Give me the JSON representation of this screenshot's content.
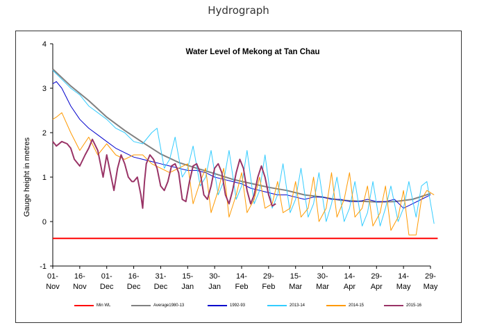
{
  "page": {
    "title": "Hydrograph"
  },
  "chart_data": {
    "type": "line",
    "title": "Water Level of Mekong at Tan Chau",
    "xlabel": "",
    "ylabel": "Gauge height in metres",
    "ylim": [
      -1,
      4
    ],
    "yticks": [
      "-1",
      "0",
      "1",
      "2",
      "3",
      "4"
    ],
    "xlim": [
      0,
      210
    ],
    "xticks": [
      {
        "day": 0,
        "line1": "01-",
        "line2": "Nov"
      },
      {
        "day": 15,
        "line1": "16-",
        "line2": "Nov"
      },
      {
        "day": 30,
        "line1": "01-",
        "line2": "Dec"
      },
      {
        "day": 45,
        "line1": "16-",
        "line2": "Dec"
      },
      {
        "day": 60,
        "line1": "31-",
        "line2": "Dec"
      },
      {
        "day": 75,
        "line1": "15-",
        "line2": "Jan"
      },
      {
        "day": 90,
        "line1": "30-",
        "line2": "Jan"
      },
      {
        "day": 105,
        "line1": "14-",
        "line2": "Feb"
      },
      {
        "day": 120,
        "line1": "29-",
        "line2": "Feb"
      },
      {
        "day": 135,
        "line1": "15-",
        "line2": "Mar"
      },
      {
        "day": 150,
        "line1": "30-",
        "line2": "Mar"
      },
      {
        "day": 165,
        "line1": "14-",
        "line2": "Apr"
      },
      {
        "day": 180,
        "line1": "29-",
        "line2": "Apr"
      },
      {
        "day": 195,
        "line1": "14-",
        "line2": "May"
      },
      {
        "day": 210,
        "line1": "29-",
        "line2": "May"
      }
    ],
    "grid": false,
    "legend_position": "bottom",
    "series": [
      {
        "name": "Min WL",
        "color": "#ff0000",
        "width": 2,
        "x": [
          0,
          214
        ],
        "y": [
          -0.38,
          -0.38
        ]
      },
      {
        "name": "Average1980-13",
        "color": "#808080",
        "width": 2,
        "x": [
          0,
          10,
          20,
          30,
          40,
          50,
          60,
          70,
          80,
          90,
          100,
          110,
          120,
          130,
          140,
          150,
          160,
          170,
          180,
          190,
          200,
          210
        ],
        "y": [
          3.43,
          3.05,
          2.72,
          2.35,
          2.05,
          1.78,
          1.52,
          1.33,
          1.2,
          1.08,
          0.95,
          0.86,
          0.77,
          0.7,
          0.6,
          0.55,
          0.48,
          0.46,
          0.44,
          0.45,
          0.5,
          0.63
        ]
      },
      {
        "name": "1992-93",
        "color": "#0000cc",
        "width": 1,
        "x": [
          0,
          2,
          5,
          10,
          15,
          20,
          25,
          30,
          35,
          40,
          45,
          50,
          55,
          60,
          65,
          70,
          75,
          80,
          85,
          90,
          95,
          100,
          105,
          110,
          115,
          120,
          125,
          130,
          135,
          140,
          145,
          150,
          155,
          160,
          165,
          170,
          175,
          180,
          185,
          190,
          195,
          200,
          205,
          210
        ],
        "y": [
          3.1,
          3.15,
          3.0,
          2.6,
          2.3,
          2.1,
          1.95,
          1.8,
          1.65,
          1.55,
          1.45,
          1.4,
          1.35,
          1.3,
          1.25,
          1.2,
          1.15,
          1.15,
          1.1,
          1.0,
          0.95,
          0.9,
          0.85,
          0.75,
          0.7,
          0.65,
          0.6,
          0.6,
          0.55,
          0.5,
          0.55,
          0.55,
          0.5,
          0.5,
          0.45,
          0.45,
          0.5,
          0.45,
          0.45,
          0.5,
          0.3,
          0.4,
          0.5,
          0.6
        ]
      },
      {
        "name": "2013-14",
        "color": "#33ccff",
        "width": 1,
        "x": [
          0,
          5,
          10,
          15,
          20,
          25,
          30,
          35,
          40,
          45,
          50,
          55,
          58,
          62,
          65,
          68,
          72,
          75,
          78,
          82,
          85,
          88,
          92,
          95,
          98,
          102,
          105,
          108,
          112,
          115,
          118,
          122,
          125,
          128,
          132,
          135,
          138,
          142,
          145,
          148,
          152,
          155,
          158,
          162,
          165,
          168,
          172,
          175,
          178,
          182,
          185,
          188,
          192,
          195,
          198,
          202,
          205,
          208,
          212
        ],
        "y": [
          3.4,
          3.2,
          3.0,
          2.85,
          2.6,
          2.45,
          2.3,
          2.1,
          2.0,
          1.8,
          1.75,
          2.0,
          2.1,
          1.2,
          1.4,
          1.9,
          1.0,
          1.2,
          1.7,
          0.8,
          1.0,
          1.6,
          0.6,
          0.9,
          1.6,
          0.5,
          0.8,
          1.6,
          0.4,
          0.7,
          1.5,
          0.3,
          0.6,
          1.3,
          0.2,
          0.5,
          1.2,
          0.1,
          0.4,
          1.1,
          0.0,
          0.4,
          1.0,
          0.0,
          0.3,
          0.9,
          -0.1,
          0.2,
          0.9,
          -0.1,
          0.3,
          0.8,
          0.0,
          0.3,
          0.9,
          0.1,
          0.8,
          0.9,
          -0.05
        ]
      },
      {
        "name": "2014-15",
        "color": "#ff9900",
        "width": 1,
        "x": [
          0,
          2,
          5,
          10,
          15,
          20,
          25,
          30,
          35,
          40,
          45,
          50,
          55,
          60,
          65,
          70,
          75,
          78,
          82,
          85,
          88,
          92,
          95,
          98,
          102,
          105,
          108,
          112,
          115,
          118,
          122,
          125,
          128,
          132,
          135,
          138,
          142,
          145,
          148,
          152,
          155,
          158,
          162,
          165,
          168,
          172,
          175,
          178,
          182,
          185,
          188,
          192,
          195,
          198,
          202,
          205,
          208,
          212
        ],
        "y": [
          2.3,
          2.35,
          2.45,
          2.0,
          1.6,
          1.9,
          1.5,
          1.75,
          1.5,
          1.4,
          1.5,
          1.5,
          1.3,
          1.2,
          1.1,
          1.2,
          1.3,
          0.4,
          0.9,
          1.2,
          0.2,
          0.7,
          1.2,
          0.1,
          0.6,
          1.1,
          0.2,
          0.5,
          1.0,
          0.3,
          0.4,
          0.9,
          0.2,
          0.3,
          0.9,
          0.1,
          0.3,
          1.0,
          0.0,
          0.3,
          1.1,
          0.1,
          0.5,
          1.1,
          0.1,
          0.3,
          0.8,
          -0.1,
          0.2,
          0.8,
          -0.2,
          0.1,
          0.7,
          -0.3,
          -0.3,
          0.5,
          0.7,
          0.6
        ]
      },
      {
        "name": "2015-16",
        "color": "#993366",
        "width": 2,
        "x": [
          0,
          2,
          5,
          8,
          10,
          12,
          15,
          18,
          20,
          22,
          25,
          28,
          30,
          32,
          34,
          36,
          38,
          40,
          42,
          44,
          45,
          47,
          49,
          50,
          51,
          52,
          54,
          56,
          58,
          60,
          62,
          64,
          66,
          68,
          70,
          72,
          74,
          76,
          78,
          80,
          82,
          84,
          86,
          88,
          90,
          92,
          94,
          96,
          98,
          100,
          102,
          104,
          106,
          108,
          110,
          112,
          114,
          116,
          118,
          120,
          122,
          124
        ],
        "y": [
          1.8,
          1.7,
          1.8,
          1.75,
          1.65,
          1.4,
          1.25,
          1.5,
          1.65,
          1.85,
          1.6,
          1.0,
          1.5,
          1.1,
          0.7,
          1.2,
          1.5,
          1.3,
          1.0,
          0.9,
          0.9,
          1.0,
          0.6,
          0.3,
          0.9,
          1.3,
          1.5,
          1.4,
          1.2,
          0.8,
          0.7,
          0.9,
          1.25,
          1.3,
          1.1,
          0.5,
          0.45,
          0.9,
          1.25,
          1.3,
          1.1,
          0.6,
          0.5,
          0.8,
          1.2,
          1.3,
          1.1,
          0.6,
          0.4,
          0.7,
          1.1,
          1.4,
          1.2,
          0.7,
          0.4,
          0.6,
          1.0,
          1.25,
          1.0,
          0.6,
          0.35,
          0.4
        ]
      }
    ]
  }
}
